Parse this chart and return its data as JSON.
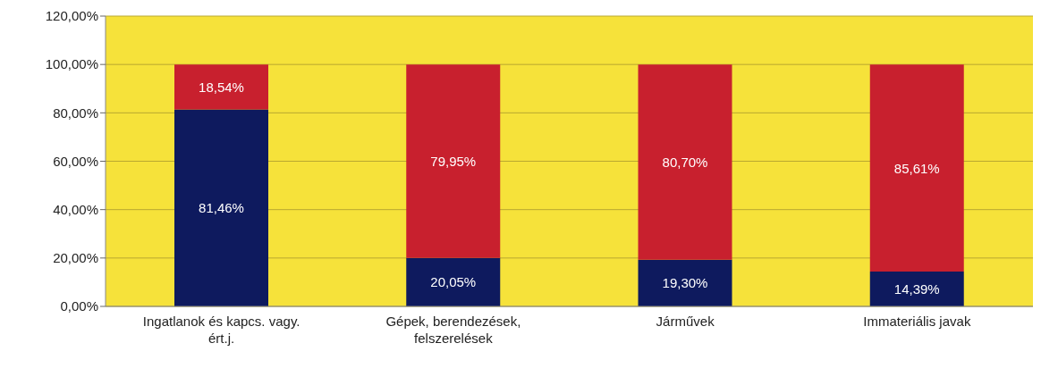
{
  "chart_data": {
    "type": "bar",
    "stacked": true,
    "categories": [
      "Ingatlanok és kapcs. vagy. ért.j.",
      "Gépek, berendezések, felszerelések",
      "Járművek",
      "Immateriális javak"
    ],
    "series": [
      {
        "color": "#0e1a5e",
        "values": [
          81.46,
          20.05,
          19.3,
          14.39
        ],
        "value_labels": [
          "81,46%",
          "20,05%",
          "19,30%",
          "14,39%"
        ]
      },
      {
        "color": "#c8202e",
        "values": [
          18.54,
          79.95,
          80.7,
          85.61
        ],
        "value_labels": [
          "18,54%",
          "79,95%",
          "80,70%",
          "85,61%"
        ]
      }
    ],
    "ylim": [
      0,
      120
    ],
    "yticks": [
      {
        "value": 0,
        "label": "0,00%"
      },
      {
        "value": 20,
        "label": "20,00%"
      },
      {
        "value": 40,
        "label": "40,00%"
      },
      {
        "value": 60,
        "label": "60,00%"
      },
      {
        "value": 80,
        "label": "80,00%"
      },
      {
        "value": 100,
        "label": "100,00%"
      },
      {
        "value": 120,
        "label": "120,00%"
      }
    ],
    "grid": "y",
    "legend": false
  }
}
